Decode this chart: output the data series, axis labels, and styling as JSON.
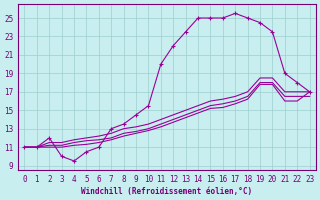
{
  "xlabel": "Windchill (Refroidissement éolien,°C)",
  "bg_color": "#c8eef0",
  "line_color": "#990099",
  "grid_color": "#9ecfcf",
  "xlim": [
    -0.5,
    23.5
  ],
  "ylim": [
    8.5,
    26.5
  ],
  "yticks": [
    9,
    11,
    13,
    15,
    17,
    19,
    21,
    23,
    25
  ],
  "xticks": [
    0,
    1,
    2,
    3,
    4,
    5,
    6,
    7,
    8,
    9,
    10,
    11,
    12,
    13,
    14,
    15,
    16,
    17,
    18,
    19,
    20,
    21,
    22,
    23
  ],
  "line1_x": [
    0,
    1,
    2,
    3,
    4,
    5,
    6,
    7,
    8,
    9,
    10,
    11,
    12,
    13,
    14,
    15,
    16,
    17,
    18,
    19,
    20,
    21,
    22,
    23
  ],
  "line1_y": [
    11,
    11,
    12.0,
    10.0,
    9.5,
    10.5,
    11.0,
    13.0,
    13.5,
    14.5,
    15.5,
    20.0,
    22.0,
    23.5,
    25.0,
    25.0,
    25.0,
    25.5,
    25.0,
    24.5,
    23.5,
    19.0,
    18.0,
    17.0
  ],
  "line2_x": [
    0,
    1,
    2,
    3,
    4,
    5,
    6,
    7,
    8,
    9,
    10,
    11,
    12,
    13,
    14,
    15,
    16,
    17,
    18,
    19,
    20,
    21,
    22,
    23
  ],
  "line2_y": [
    11.0,
    11.0,
    11.5,
    11.5,
    11.8,
    12.0,
    12.2,
    12.5,
    13.0,
    13.2,
    13.5,
    14.0,
    14.5,
    15.0,
    15.5,
    16.0,
    16.2,
    16.5,
    17.0,
    18.5,
    18.5,
    17.0,
    17.0,
    17.0
  ],
  "line3_x": [
    0,
    1,
    2,
    3,
    4,
    5,
    6,
    7,
    8,
    9,
    10,
    11,
    12,
    13,
    14,
    15,
    16,
    17,
    18,
    19,
    20,
    21,
    22,
    23
  ],
  "line3_y": [
    11.0,
    11.0,
    11.2,
    11.2,
    11.5,
    11.7,
    11.8,
    12.0,
    12.5,
    12.7,
    13.0,
    13.5,
    14.0,
    14.5,
    15.0,
    15.5,
    15.7,
    16.0,
    16.5,
    18.0,
    18.0,
    16.5,
    16.5,
    16.5
  ],
  "line4_x": [
    0,
    1,
    2,
    3,
    4,
    5,
    6,
    7,
    8,
    9,
    10,
    11,
    12,
    13,
    14,
    15,
    16,
    17,
    18,
    19,
    20,
    21,
    22,
    23
  ],
  "line4_y": [
    11.0,
    11.0,
    11.0,
    11.0,
    11.2,
    11.3,
    11.5,
    11.8,
    12.2,
    12.5,
    12.8,
    13.2,
    13.7,
    14.2,
    14.7,
    15.2,
    15.3,
    15.7,
    16.2,
    17.8,
    17.8,
    16.0,
    16.0,
    17.0
  ],
  "tick_fontsize": 5.5,
  "xlabel_fontsize": 5.5,
  "tick_color": "#770077",
  "spine_color": "#770077"
}
